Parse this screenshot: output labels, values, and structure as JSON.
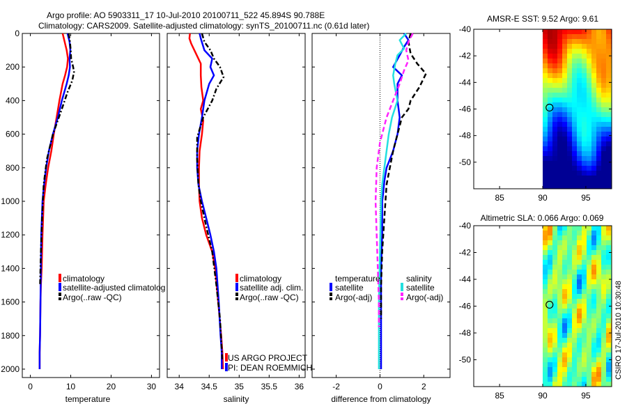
{
  "title_line1": "Argo profile: AO 5903311_17 10-Jul-2010 20100711_522 45.894S 90.788E",
  "title_line2": "Climatology: CARS2009. Satellite-adjusted climatology: synTS_20100711.nc (0.61d later)",
  "depth_ticks": [
    "0",
    "200",
    "400",
    "600",
    "800",
    "1000",
    "1200",
    "1400",
    "1600",
    "1800",
    "2000"
  ],
  "colors": {
    "red": "#ff0000",
    "blue": "#0000ff",
    "black": "#000000",
    "cyan": "#22e0e0",
    "magenta": "#ff22ff"
  },
  "chart_data": [
    {
      "type": "line",
      "name": "temperature-panel",
      "xlabel": "temperature",
      "xlim": [
        -2,
        32
      ],
      "ylim": [
        0,
        2050
      ],
      "y_reversed": true,
      "xticks": [
        "0",
        "10",
        "20",
        "30"
      ],
      "series": [
        {
          "name": "climatology",
          "color": "red",
          "dash": "solid",
          "x": [
            8.0,
            8.5,
            9.0,
            9.3,
            9.1,
            8.6,
            8.0,
            7.2,
            6.5,
            5.8,
            5.2,
            4.4,
            3.8,
            3.3,
            3.0,
            2.8,
            2.6,
            2.5,
            2.4,
            2.3,
            2.3
          ],
          "y": [
            0,
            50,
            100,
            150,
            200,
            250,
            300,
            400,
            500,
            600,
            700,
            800,
            900,
            1000,
            1200,
            1400,
            1500,
            1600,
            1800,
            1900,
            2000
          ]
        },
        {
          "name": "satellite-adjusted climatology",
          "color": "blue",
          "dash": "solid",
          "x": [
            9.2,
            9.7,
            9.9,
            9.7,
            9.8,
            9.5,
            9.0,
            7.8,
            6.8,
            5.6,
            4.6,
            3.9,
            3.4,
            3.0,
            2.7,
            2.6,
            2.5,
            2.4,
            2.3,
            2.3
          ],
          "y": [
            0,
            50,
            100,
            150,
            200,
            250,
            300,
            400,
            500,
            600,
            700,
            800,
            900,
            1000,
            1200,
            1400,
            1600,
            1800,
            1900,
            2000
          ]
        },
        {
          "name": "Argo(..raw -QC)",
          "color": "black",
          "dash": "dashdot",
          "x": [
            9.5,
            9.8,
            10.0,
            10.1,
            10.6,
            10.8,
            10.4,
            9.2,
            7.8,
            5.6,
            4.1,
            3.3,
            2.9,
            2.6,
            2.4
          ],
          "y": [
            0,
            50,
            100,
            150,
            200,
            230,
            280,
            350,
            450,
            600,
            750,
            900,
            1100,
            1300,
            1500
          ]
        }
      ],
      "legend": [
        "climatology",
        "satellite-adjusted climatolog",
        "Argo(..raw -QC)"
      ]
    },
    {
      "type": "line",
      "name": "salinity-panel",
      "xlabel": "salinity",
      "xlim": [
        33.8,
        36.1
      ],
      "ylim": [
        0,
        2050
      ],
      "y_reversed": true,
      "xticks": [
        "34",
        "34.5",
        "35",
        "35.5",
        "36"
      ],
      "series": [
        {
          "name": "climatology",
          "color": "red",
          "dash": "solid",
          "x": [
            34.18,
            34.17,
            34.2,
            34.28,
            34.36,
            34.36,
            34.37,
            34.4,
            34.36,
            34.4,
            34.38,
            34.34,
            34.33,
            34.33,
            34.34,
            34.38,
            34.45,
            34.55,
            34.6,
            34.65,
            34.7,
            34.72,
            34.73
          ],
          "y": [
            0,
            30,
            60,
            120,
            180,
            250,
            320,
            400,
            450,
            520,
            600,
            700,
            800,
            900,
            1000,
            1100,
            1200,
            1300,
            1400,
            1600,
            1800,
            1900,
            2000
          ]
        },
        {
          "name": "satellite adj. clim.",
          "color": "blue",
          "dash": "solid",
          "x": [
            34.34,
            34.36,
            34.42,
            34.55,
            34.52,
            34.58,
            34.5,
            34.42,
            34.38,
            34.33,
            34.3,
            34.3,
            34.32,
            34.38,
            34.45,
            34.52,
            34.58,
            34.62,
            34.66,
            34.69,
            34.71,
            34.71
          ],
          "y": [
            0,
            30,
            100,
            150,
            200,
            250,
            300,
            400,
            500,
            600,
            700,
            800,
            900,
            1000,
            1100,
            1200,
            1300,
            1400,
            1600,
            1800,
            1900,
            2000
          ]
        },
        {
          "name": "Argo(..raw -QC)",
          "color": "black",
          "dash": "dashdot",
          "x": [
            34.38,
            34.42,
            34.52,
            34.58,
            34.68,
            34.74,
            34.62,
            34.55,
            34.4,
            34.3,
            34.3,
            34.32,
            34.36,
            34.45,
            34.55,
            34.62,
            34.68,
            34.72
          ],
          "y": [
            0,
            50,
            100,
            150,
            200,
            260,
            330,
            400,
            500,
            620,
            750,
            900,
            1000,
            1150,
            1300,
            1500,
            1700,
            1950
          ]
        }
      ],
      "legend": [
        "climatology",
        "satellite adj. clim.",
        "Argo(..raw -QC)"
      ],
      "annotations": [
        "US ARGO PROJECT",
        "PI: DEAN ROEMMICH"
      ]
    },
    {
      "type": "line",
      "name": "difference-panel",
      "xlabel": "difference from climatology",
      "xlim": [
        -3.1,
        3.2
      ],
      "ylim": [
        0,
        2050
      ],
      "y_reversed": true,
      "xticks": [
        "-2",
        "0",
        "2"
      ],
      "zero_line": true,
      "series": [
        {
          "name": "temperature satellite",
          "color": "blue",
          "dash": "solid",
          "x": [
            1.1,
            1.3,
            1.1,
            0.9,
            0.6,
            1.0,
            0.8,
            0.8,
            0.9,
            0.8,
            0.6,
            0.3,
            0.2,
            0.15,
            0.1,
            0.1,
            0.05,
            0.05,
            0.05,
            0.05
          ],
          "y": [
            0,
            40,
            80,
            130,
            200,
            250,
            300,
            400,
            500,
            600,
            700,
            800,
            880,
            950,
            1000,
            1200,
            1400,
            1600,
            1800,
            2000
          ]
        },
        {
          "name": "temperature Argo(-adj)",
          "color": "black",
          "dash": "dashed",
          "x": [
            1.4,
            1.3,
            1.4,
            1.7,
            2.1,
            1.8,
            1.4,
            1.3,
            1.0,
            0.8,
            0.6,
            0.45,
            0.3,
            0.2,
            0.1,
            0.05,
            0.05
          ],
          "y": [
            0,
            50,
            120,
            180,
            240,
            320,
            400,
            450,
            500,
            600,
            700,
            800,
            900,
            1100,
            1300,
            1500,
            1700
          ]
        },
        {
          "name": "salinity satellite",
          "color": "cyan",
          "dash": "solid",
          "x": [
            1.2,
            0.9,
            1.1,
            0.8,
            0.7,
            0.6,
            0.65,
            0.8,
            0.55,
            0.4,
            0.3,
            0.2,
            0.1,
            0.05,
            0.0,
            -0.05,
            -0.05
          ],
          "y": [
            0,
            40,
            90,
            130,
            180,
            250,
            300,
            400,
            500,
            600,
            700,
            800,
            900,
            1000,
            1300,
            1600,
            2000
          ]
        },
        {
          "name": "salinity Argo(-adj)",
          "color": "magenta",
          "dash": "dashed",
          "x": [
            1.5,
            1.3,
            1.2,
            1.3,
            1.1,
            0.9,
            0.6,
            0.3,
            0.0,
            -0.15,
            -0.2,
            -0.15,
            -0.1,
            -0.05,
            -0.05
          ],
          "y": [
            0,
            50,
            100,
            160,
            220,
            300,
            400,
            500,
            650,
            800,
            1000,
            1200,
            1400,
            1600,
            1750
          ]
        }
      ],
      "legend_groups": [
        {
          "title": "temperature",
          "items": [
            "satellite",
            "Argo(-adj)"
          ]
        },
        {
          "title": "salinity",
          "items": [
            "satellite",
            "Argo(-adj)"
          ]
        }
      ]
    },
    {
      "type": "heatmap",
      "name": "sst-map",
      "title": "AMSR-E SST: 9.52 Argo: 9.61",
      "xlim": [
        82,
        98
      ],
      "ylim": [
        -52,
        -40
      ],
      "xticks": [
        "85",
        "90",
        "95"
      ],
      "yticks": [
        "-40",
        "-42",
        "-44",
        "-46",
        "-48",
        "-50"
      ],
      "data_lon_start": 90,
      "marker": {
        "lon": 90.788,
        "lat": -45.894
      }
    },
    {
      "type": "heatmap",
      "name": "sla-map",
      "title": "Altimetric SLA: 0.066 Argo: 0.069",
      "xlim": [
        82,
        98
      ],
      "ylim": [
        -52,
        -40
      ],
      "xticks": [
        "85",
        "90",
        "95"
      ],
      "yticks": [
        "-40",
        "-42",
        "-44",
        "-46",
        "-48",
        "-50"
      ],
      "data_lon_start": 90,
      "marker": {
        "lon": 90.788,
        "lat": -45.894
      }
    }
  ],
  "side_label": "CSIRO 17-Jul-2010 10:30:48"
}
